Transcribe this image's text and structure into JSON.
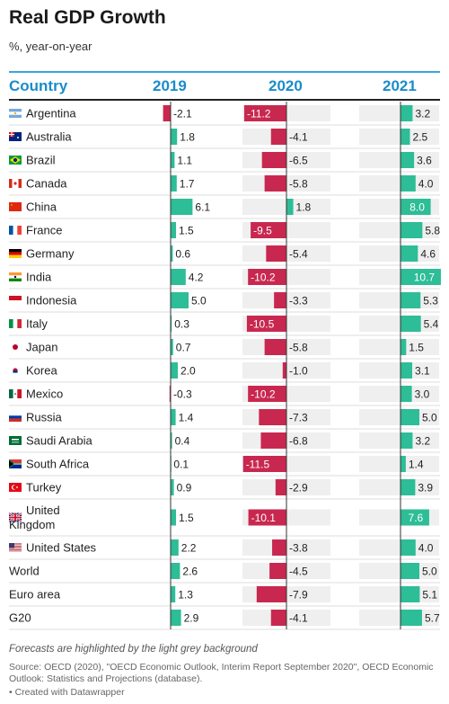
{
  "title": "Real GDP Growth",
  "subtitle": "%, year-on-year",
  "note": "Forecasts are highlighted by the light grey background",
  "source": "Source: OECD (2020), \"OECD Economic Outlook, Interim Report September 2020\", OECD Economic Outlook: Statistics and Projections (database).",
  "credit": "• Created with Datawrapper",
  "colors": {
    "positive": "#2dbd97",
    "negative": "#c8284f",
    "header": "#1a8ccb",
    "forecast_bg": "#efefef"
  },
  "chart_data": {
    "type": "table",
    "columns": [
      "Country",
      "2019",
      "2020",
      "2021"
    ],
    "forecast_columns": [
      "2020",
      "2021"
    ],
    "rows": [
      {
        "country": "Argentina",
        "flag": "argentina-flag-icon",
        "values": [
          -2.1,
          -11.2,
          3.2
        ]
      },
      {
        "country": "Australia",
        "flag": "australia-flag-icon",
        "values": [
          1.8,
          -4.1,
          2.5
        ]
      },
      {
        "country": "Brazil",
        "flag": "brazil-flag-icon",
        "values": [
          1.1,
          -6.5,
          3.6
        ]
      },
      {
        "country": "Canada",
        "flag": "canada-flag-icon",
        "values": [
          1.7,
          -5.8,
          4.0
        ]
      },
      {
        "country": "China",
        "flag": "china-flag-icon",
        "values": [
          6.1,
          1.8,
          8.0
        ]
      },
      {
        "country": "France",
        "flag": "france-flag-icon",
        "values": [
          1.5,
          -9.5,
          5.8
        ]
      },
      {
        "country": "Germany",
        "flag": "germany-flag-icon",
        "values": [
          0.6,
          -5.4,
          4.6
        ]
      },
      {
        "country": "India",
        "flag": "india-flag-icon",
        "values": [
          4.2,
          -10.2,
          10.7
        ]
      },
      {
        "country": "Indonesia",
        "flag": "indonesia-flag-icon",
        "values": [
          5.0,
          -3.3,
          5.3
        ]
      },
      {
        "country": "Italy",
        "flag": "italy-flag-icon",
        "values": [
          0.3,
          -10.5,
          5.4
        ]
      },
      {
        "country": "Japan",
        "flag": "japan-flag-icon",
        "values": [
          0.7,
          -5.8,
          1.5
        ]
      },
      {
        "country": "Korea",
        "flag": "korea-flag-icon",
        "values": [
          2.0,
          -1.0,
          3.1
        ]
      },
      {
        "country": "Mexico",
        "flag": "mexico-flag-icon",
        "values": [
          -0.3,
          -10.2,
          3.0
        ]
      },
      {
        "country": "Russia",
        "flag": "russia-flag-icon",
        "values": [
          1.4,
          -7.3,
          5.0
        ]
      },
      {
        "country": "Saudi Arabia",
        "flag": "saudi-arabia-flag-icon",
        "values": [
          0.4,
          -6.8,
          3.2
        ]
      },
      {
        "country": "South Africa",
        "flag": "south-africa-flag-icon",
        "values": [
          0.1,
          -11.5,
          1.4
        ]
      },
      {
        "country": "Turkey",
        "flag": "turkey-flag-icon",
        "values": [
          0.9,
          -2.9,
          3.9
        ]
      },
      {
        "country": "United Kingdom",
        "flag": "united-kingdom-flag-icon",
        "values": [
          1.5,
          -10.1,
          7.6
        ]
      },
      {
        "country": "United States",
        "flag": "united-states-flag-icon",
        "values": [
          2.2,
          -3.8,
          4.0
        ]
      },
      {
        "country": "World",
        "flag": "",
        "values": [
          2.6,
          -4.5,
          5.0
        ]
      },
      {
        "country": "Euro area",
        "flag": "",
        "values": [
          1.3,
          -7.9,
          5.1
        ]
      },
      {
        "country": "G20",
        "flag": "",
        "values": [
          2.9,
          -4.1,
          5.7
        ]
      }
    ]
  }
}
